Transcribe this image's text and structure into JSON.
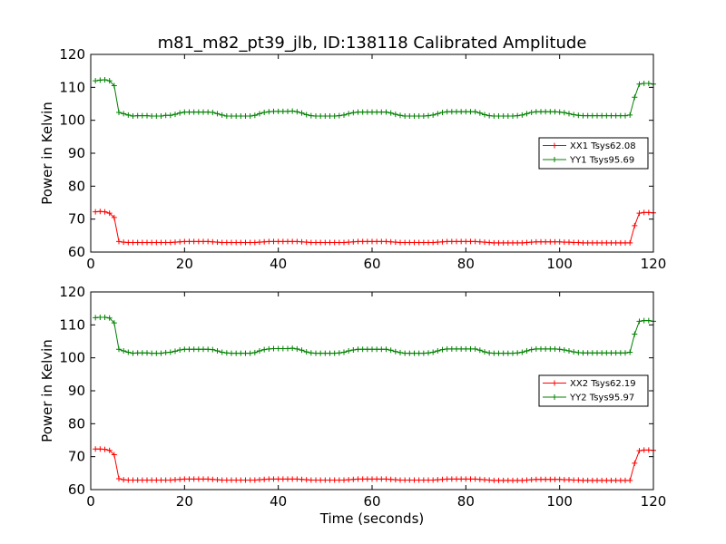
{
  "figure": {
    "title": "m81_m82_pt39_jlb, ID:138118 Calibrated Amplitude"
  },
  "chart_data": [
    {
      "type": "line",
      "ylabel": "Power in Kelvin",
      "xlabel": "",
      "xlim": [
        0,
        120
      ],
      "ylim": [
        60,
        120
      ],
      "xticks": [
        0,
        20,
        40,
        60,
        80,
        100,
        120
      ],
      "yticks": [
        60,
        70,
        80,
        90,
        100,
        110,
        120
      ],
      "grid": false,
      "legend_position": "center-right",
      "series": [
        {
          "name": "XX1 Tsys62.08",
          "color": "#ff0000",
          "marker": "+",
          "x": [
            1,
            2,
            3,
            4,
            5,
            6,
            7,
            8,
            9,
            10,
            11,
            12,
            13,
            14,
            15,
            16,
            17,
            18,
            19,
            20,
            21,
            22,
            23,
            24,
            25,
            26,
            27,
            28,
            29,
            30,
            31,
            32,
            33,
            34,
            35,
            36,
            37,
            38,
            39,
            40,
            41,
            42,
            43,
            44,
            45,
            46,
            47,
            48,
            49,
            50,
            51,
            52,
            53,
            54,
            55,
            56,
            57,
            58,
            59,
            60,
            61,
            62,
            63,
            64,
            65,
            66,
            67,
            68,
            69,
            70,
            71,
            72,
            73,
            74,
            75,
            76,
            77,
            78,
            79,
            80,
            81,
            82,
            83,
            84,
            85,
            86,
            87,
            88,
            89,
            90,
            91,
            92,
            93,
            94,
            95,
            96,
            97,
            98,
            99,
            100,
            101,
            102,
            103,
            104,
            105,
            106,
            107,
            108,
            109,
            110,
            111,
            112,
            113,
            114,
            115,
            116,
            117,
            118,
            119,
            120
          ],
          "y": [
            72.2,
            72.3,
            72.2,
            71.8,
            70.5,
            63.2,
            63.0,
            62.9,
            62.9,
            62.9,
            62.9,
            62.9,
            62.9,
            62.9,
            62.9,
            62.9,
            62.9,
            63.0,
            63.1,
            63.2,
            63.2,
            63.2,
            63.2,
            63.2,
            63.2,
            63.1,
            63.0,
            62.9,
            62.9,
            62.9,
            62.9,
            62.9,
            62.9,
            62.9,
            62.9,
            63.0,
            63.1,
            63.2,
            63.2,
            63.2,
            63.2,
            63.2,
            63.2,
            63.2,
            63.1,
            63.0,
            62.9,
            62.9,
            62.9,
            62.9,
            62.9,
            62.9,
            62.9,
            62.9,
            63.0,
            63.1,
            63.2,
            63.2,
            63.2,
            63.2,
            63.2,
            63.2,
            63.2,
            63.1,
            63.0,
            62.9,
            62.9,
            62.9,
            62.9,
            62.9,
            62.9,
            62.9,
            62.9,
            63.0,
            63.1,
            63.2,
            63.2,
            63.2,
            63.2,
            63.2,
            63.2,
            63.2,
            63.1,
            63.0,
            62.9,
            62.8,
            62.8,
            62.8,
            62.8,
            62.8,
            62.8,
            62.8,
            62.9,
            63.0,
            63.1,
            63.1,
            63.1,
            63.1,
            63.1,
            63.1,
            63.0,
            63.0,
            62.9,
            62.9,
            62.8,
            62.8,
            62.8,
            62.8,
            62.8,
            62.8,
            62.8,
            62.8,
            62.8,
            62.8,
            62.8,
            68.0,
            71.8,
            72.0,
            72.0,
            71.9
          ]
        },
        {
          "name": "YY1 Tsys95.69",
          "color": "#008000",
          "marker": "+",
          "x": [
            1,
            2,
            3,
            4,
            5,
            6,
            7,
            8,
            9,
            10,
            11,
            12,
            13,
            14,
            15,
            16,
            17,
            18,
            19,
            20,
            21,
            22,
            23,
            24,
            25,
            26,
            27,
            28,
            29,
            30,
            31,
            32,
            33,
            34,
            35,
            36,
            37,
            38,
            39,
            40,
            41,
            42,
            43,
            44,
            45,
            46,
            47,
            48,
            49,
            50,
            51,
            52,
            53,
            54,
            55,
            56,
            57,
            58,
            59,
            60,
            61,
            62,
            63,
            64,
            65,
            66,
            67,
            68,
            69,
            70,
            71,
            72,
            73,
            74,
            75,
            76,
            77,
            78,
            79,
            80,
            81,
            82,
            83,
            84,
            85,
            86,
            87,
            88,
            89,
            90,
            91,
            92,
            93,
            94,
            95,
            96,
            97,
            98,
            99,
            100,
            101,
            102,
            103,
            104,
            105,
            106,
            107,
            108,
            109,
            110,
            111,
            112,
            113,
            114,
            115,
            116,
            117,
            118,
            119,
            120
          ],
          "y": [
            112.0,
            112.2,
            112.3,
            112.0,
            110.5,
            102.4,
            102.0,
            101.6,
            101.3,
            101.4,
            101.4,
            101.4,
            101.3,
            101.3,
            101.3,
            101.5,
            101.5,
            101.8,
            102.2,
            102.5,
            102.5,
            102.5,
            102.5,
            102.5,
            102.5,
            102.4,
            102.0,
            101.6,
            101.3,
            101.3,
            101.3,
            101.3,
            101.3,
            101.3,
            101.5,
            102.0,
            102.4,
            102.6,
            102.7,
            102.7,
            102.7,
            102.7,
            102.8,
            102.6,
            102.2,
            101.7,
            101.4,
            101.3,
            101.3,
            101.3,
            101.3,
            101.3,
            101.4,
            101.6,
            102.0,
            102.3,
            102.5,
            102.5,
            102.5,
            102.5,
            102.5,
            102.5,
            102.5,
            102.2,
            101.8,
            101.5,
            101.3,
            101.3,
            101.3,
            101.3,
            101.3,
            101.4,
            101.6,
            102.0,
            102.4,
            102.6,
            102.6,
            102.6,
            102.6,
            102.6,
            102.6,
            102.6,
            102.2,
            101.7,
            101.4,
            101.3,
            101.3,
            101.3,
            101.3,
            101.3,
            101.4,
            101.6,
            102.0,
            102.4,
            102.6,
            102.6,
            102.6,
            102.6,
            102.6,
            102.5,
            102.3,
            102.0,
            101.7,
            101.5,
            101.4,
            101.4,
            101.4,
            101.4,
            101.4,
            101.4,
            101.4,
            101.4,
            101.4,
            101.4,
            101.6,
            107.0,
            111.0,
            111.2,
            111.2,
            111.0
          ]
        }
      ]
    },
    {
      "type": "line",
      "ylabel": "Power in Kelvin",
      "xlabel": "Time (seconds)",
      "xlim": [
        0,
        120
      ],
      "ylim": [
        60,
        120
      ],
      "xticks": [
        0,
        20,
        40,
        60,
        80,
        100,
        120
      ],
      "yticks": [
        60,
        70,
        80,
        90,
        100,
        110,
        120
      ],
      "grid": false,
      "legend_position": "center-right",
      "series": [
        {
          "name": "XX2 Tsys62.19",
          "color": "#ff0000",
          "marker": "+",
          "x": [
            1,
            2,
            3,
            4,
            5,
            6,
            7,
            8,
            9,
            10,
            11,
            12,
            13,
            14,
            15,
            16,
            17,
            18,
            19,
            20,
            21,
            22,
            23,
            24,
            25,
            26,
            27,
            28,
            29,
            30,
            31,
            32,
            33,
            34,
            35,
            36,
            37,
            38,
            39,
            40,
            41,
            42,
            43,
            44,
            45,
            46,
            47,
            48,
            49,
            50,
            51,
            52,
            53,
            54,
            55,
            56,
            57,
            58,
            59,
            60,
            61,
            62,
            63,
            64,
            65,
            66,
            67,
            68,
            69,
            70,
            71,
            72,
            73,
            74,
            75,
            76,
            77,
            78,
            79,
            80,
            81,
            82,
            83,
            84,
            85,
            86,
            87,
            88,
            89,
            90,
            91,
            92,
            93,
            94,
            95,
            96,
            97,
            98,
            99,
            100,
            101,
            102,
            103,
            104,
            105,
            106,
            107,
            108,
            109,
            110,
            111,
            112,
            113,
            114,
            115,
            116,
            117,
            118,
            119,
            120
          ],
          "y": [
            72.3,
            72.3,
            72.2,
            71.9,
            70.6,
            63.3,
            63.0,
            62.9,
            62.9,
            62.9,
            62.9,
            62.9,
            62.9,
            62.9,
            62.9,
            62.9,
            62.9,
            63.0,
            63.1,
            63.2,
            63.2,
            63.2,
            63.2,
            63.2,
            63.2,
            63.1,
            63.0,
            62.9,
            62.9,
            62.9,
            62.9,
            62.9,
            62.9,
            62.9,
            62.9,
            63.0,
            63.1,
            63.2,
            63.2,
            63.2,
            63.2,
            63.2,
            63.2,
            63.2,
            63.1,
            63.0,
            62.9,
            62.9,
            62.9,
            62.9,
            62.9,
            62.9,
            62.9,
            62.9,
            63.0,
            63.1,
            63.2,
            63.2,
            63.2,
            63.2,
            63.2,
            63.2,
            63.2,
            63.1,
            63.0,
            62.9,
            62.9,
            62.9,
            62.9,
            62.9,
            62.9,
            62.9,
            62.9,
            63.0,
            63.1,
            63.2,
            63.2,
            63.2,
            63.2,
            63.2,
            63.2,
            63.2,
            63.1,
            63.0,
            62.9,
            62.8,
            62.8,
            62.8,
            62.8,
            62.8,
            62.8,
            62.8,
            62.9,
            63.0,
            63.1,
            63.1,
            63.1,
            63.1,
            63.1,
            63.1,
            63.0,
            63.0,
            62.9,
            62.9,
            62.8,
            62.8,
            62.8,
            62.8,
            62.8,
            62.8,
            62.8,
            62.8,
            62.8,
            62.8,
            62.8,
            68.0,
            71.8,
            72.0,
            72.0,
            71.9
          ]
        },
        {
          "name": "YY2 Tsys95.97",
          "color": "#008000",
          "marker": "+",
          "x": [
            1,
            2,
            3,
            4,
            5,
            6,
            7,
            8,
            9,
            10,
            11,
            12,
            13,
            14,
            15,
            16,
            17,
            18,
            19,
            20,
            21,
            22,
            23,
            24,
            25,
            26,
            27,
            28,
            29,
            30,
            31,
            32,
            33,
            34,
            35,
            36,
            37,
            38,
            39,
            40,
            41,
            42,
            43,
            44,
            45,
            46,
            47,
            48,
            49,
            50,
            51,
            52,
            53,
            54,
            55,
            56,
            57,
            58,
            59,
            60,
            61,
            62,
            63,
            64,
            65,
            66,
            67,
            68,
            69,
            70,
            71,
            72,
            73,
            74,
            75,
            76,
            77,
            78,
            79,
            80,
            81,
            82,
            83,
            84,
            85,
            86,
            87,
            88,
            89,
            90,
            91,
            92,
            93,
            94,
            95,
            96,
            97,
            98,
            99,
            100,
            101,
            102,
            103,
            104,
            105,
            106,
            107,
            108,
            109,
            110,
            111,
            112,
            113,
            114,
            115,
            116,
            117,
            118,
            119,
            120
          ],
          "y": [
            112.2,
            112.3,
            112.3,
            112.1,
            110.6,
            102.6,
            102.1,
            101.7,
            101.4,
            101.5,
            101.5,
            101.5,
            101.4,
            101.4,
            101.4,
            101.6,
            101.7,
            102.0,
            102.4,
            102.6,
            102.6,
            102.6,
            102.6,
            102.6,
            102.6,
            102.5,
            102.1,
            101.7,
            101.5,
            101.4,
            101.4,
            101.4,
            101.4,
            101.4,
            101.6,
            102.1,
            102.5,
            102.7,
            102.8,
            102.8,
            102.8,
            102.8,
            102.9,
            102.7,
            102.3,
            101.8,
            101.5,
            101.4,
            101.4,
            101.4,
            101.4,
            101.4,
            101.5,
            101.7,
            102.1,
            102.4,
            102.6,
            102.6,
            102.6,
            102.6,
            102.6,
            102.6,
            102.6,
            102.3,
            101.9,
            101.6,
            101.4,
            101.4,
            101.4,
            101.4,
            101.4,
            101.5,
            101.7,
            102.1,
            102.5,
            102.7,
            102.7,
            102.7,
            102.7,
            102.7,
            102.7,
            102.7,
            102.3,
            101.8,
            101.5,
            101.4,
            101.4,
            101.4,
            101.4,
            101.4,
            101.5,
            101.7,
            102.1,
            102.5,
            102.7,
            102.7,
            102.7,
            102.7,
            102.7,
            102.6,
            102.4,
            102.1,
            101.8,
            101.6,
            101.5,
            101.5,
            101.5,
            101.5,
            101.5,
            101.5,
            101.5,
            101.5,
            101.5,
            101.5,
            101.7,
            107.2,
            111.1,
            111.3,
            111.3,
            111.1
          ]
        }
      ]
    }
  ]
}
